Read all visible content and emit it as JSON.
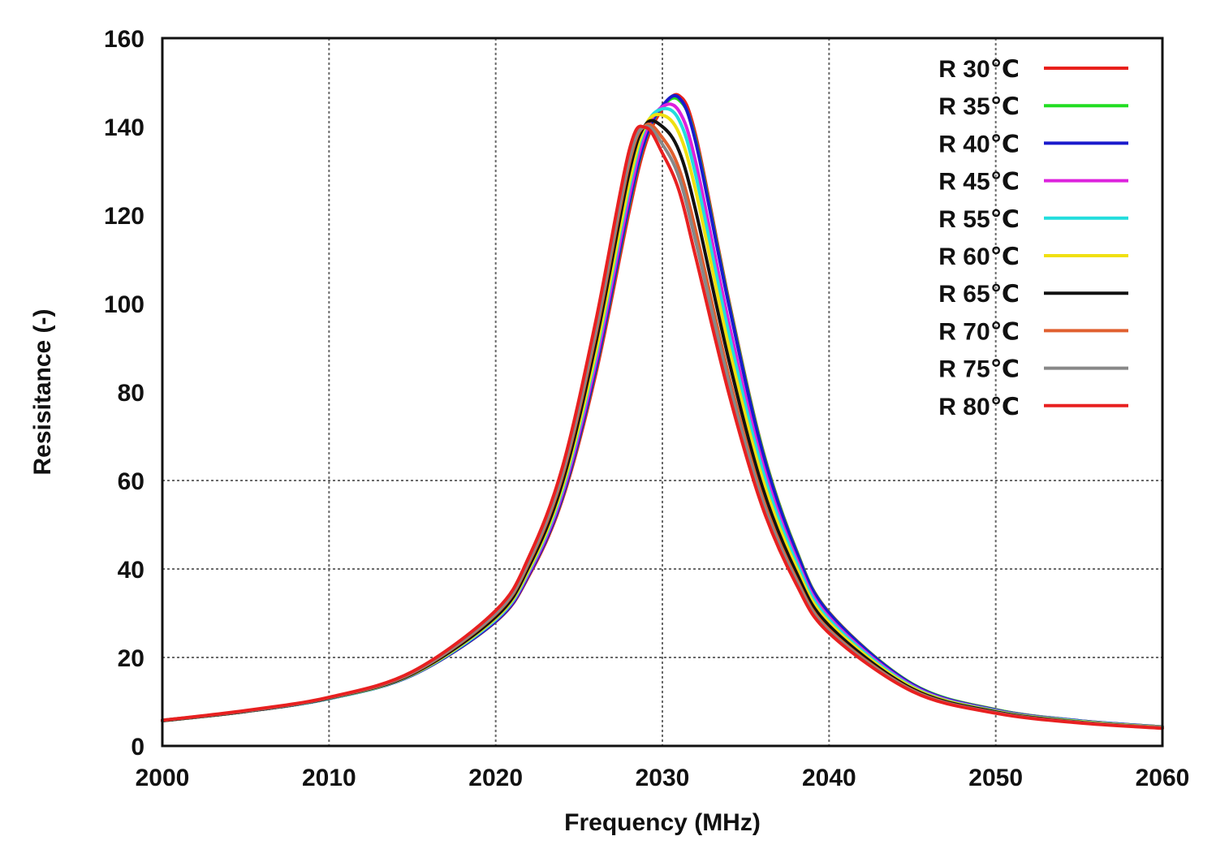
{
  "chart_data": {
    "type": "line",
    "title": "",
    "xlabel": "Frequency (MHz)",
    "ylabel": "Resisitance (-)",
    "xlim": [
      2000,
      2060
    ],
    "ylim": [
      0,
      160
    ],
    "xticks": [
      2000,
      2010,
      2020,
      2030,
      2040,
      2050,
      2060
    ],
    "yticks": [
      0,
      20,
      40,
      60,
      80,
      100,
      120,
      140,
      160
    ],
    "xtick_labels": [
      "2000",
      "2010",
      "2020",
      "2030",
      "2040",
      "2050",
      "2060"
    ],
    "ytick_labels": [
      "0",
      "20",
      "40",
      "60",
      "80",
      "100",
      "120",
      "140",
      "160"
    ],
    "grid": true,
    "legend_position": "top-right",
    "x": [
      2000,
      2005,
      2010,
      2015,
      2020,
      2022,
      2024,
      2026,
      2028,
      2029,
      2030,
      2031,
      2032,
      2034,
      2036,
      2038,
      2040,
      2045,
      2050,
      2055,
      2060
    ],
    "series": [
      {
        "name": "R 30℃",
        "color": "#e8201c",
        "values": [
          5.7,
          7.8,
          10.7,
          16.0,
          28.1,
          38.5,
          55.7,
          84.0,
          120.7,
          136.2,
          144.0,
          147.0,
          138.0,
          100.5,
          67.2,
          44.6,
          30.2,
          14.0,
          8.2,
          5.7,
          4.3
        ]
      },
      {
        "name": "R 35℃",
        "color": "#22dd22",
        "values": [
          5.7,
          7.8,
          10.7,
          16.0,
          28.2,
          38.8,
          56.2,
          85.0,
          122.0,
          137.2,
          144.5,
          146.0,
          137.0,
          100.0,
          67.0,
          44.5,
          30.1,
          14.0,
          8.2,
          5.7,
          4.3
        ]
      },
      {
        "name": "R 40℃",
        "color": "#1a1acc",
        "values": [
          5.7,
          7.8,
          10.7,
          16.0,
          28.2,
          38.8,
          56.3,
          85.3,
          122.5,
          137.5,
          144.7,
          146.5,
          136.5,
          99.5,
          66.5,
          44.2,
          30.0,
          13.9,
          8.1,
          5.7,
          4.3
        ]
      },
      {
        "name": "R 45℃",
        "color": "#dd22dd",
        "values": [
          5.7,
          7.8,
          10.7,
          16.1,
          28.5,
          39.2,
          57.0,
          86.5,
          124.0,
          138.8,
          144.5,
          143.5,
          132.0,
          95.5,
          64.0,
          42.7,
          29.1,
          13.6,
          8.0,
          5.6,
          4.2
        ]
      },
      {
        "name": "R 55℃",
        "color": "#22dddd",
        "values": [
          5.7,
          7.8,
          10.7,
          16.1,
          28.6,
          39.6,
          57.8,
          88.0,
          126.0,
          140.0,
          144.0,
          141.5,
          129.0,
          93.0,
          62.5,
          41.9,
          28.6,
          13.4,
          7.9,
          5.6,
          4.2
        ]
      },
      {
        "name": "R 60℃",
        "color": "#f0e010",
        "values": [
          5.7,
          7.8,
          10.8,
          16.2,
          28.9,
          40.0,
          58.5,
          89.0,
          127.2,
          140.4,
          142.6,
          138.5,
          125.5,
          90.0,
          60.5,
          40.7,
          27.9,
          13.2,
          7.8,
          5.5,
          4.2
        ]
      },
      {
        "name": "R 65℃",
        "color": "#111111",
        "values": [
          5.7,
          7.8,
          10.8,
          16.3,
          29.2,
          40.6,
          59.5,
          91.0,
          129.5,
          140.5,
          140.0,
          134.5,
          121.0,
          87.0,
          58.5,
          39.5,
          27.2,
          12.9,
          7.7,
          5.4,
          4.1
        ]
      },
      {
        "name": "R 70℃",
        "color": "#e06030",
        "values": [
          5.8,
          7.9,
          10.9,
          16.5,
          29.8,
          41.5,
          61.0,
          93.0,
          131.5,
          140.3,
          137.5,
          130.5,
          116.5,
          83.5,
          56.3,
          38.1,
          26.3,
          12.6,
          7.5,
          5.3,
          4.1
        ]
      },
      {
        "name": "R 75℃",
        "color": "#888888",
        "values": [
          5.8,
          7.9,
          10.9,
          16.6,
          30.0,
          41.9,
          61.7,
          94.0,
          132.5,
          140.0,
          136.0,
          128.5,
          114.0,
          82.0,
          55.4,
          37.6,
          26.0,
          12.5,
          7.5,
          5.3,
          4.1
        ]
      },
      {
        "name": "R 80℃",
        "color": "#e82020",
        "values": [
          5.8,
          8.0,
          11.0,
          16.8,
          30.6,
          42.8,
          63.0,
          96.0,
          134.5,
          139.8,
          134.0,
          125.5,
          110.5,
          79.5,
          54.0,
          36.8,
          25.5,
          12.3,
          7.4,
          5.2,
          4.0
        ]
      }
    ]
  }
}
